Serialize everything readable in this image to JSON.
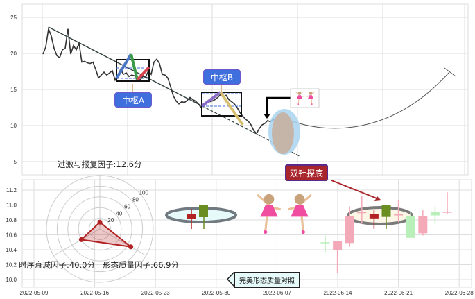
{
  "chart_data": [
    {
      "type": "line",
      "panel": "top",
      "y_ticks": [
        "25",
        "20",
        "15",
        "10",
        "5"
      ],
      "ylim": [
        4,
        26.5
      ],
      "grid": true,
      "price": [
        19.9,
        20.9,
        23.4,
        22.4,
        20.7,
        19.7,
        19.4,
        20.5,
        20.7,
        23.4,
        19.9,
        21.1,
        20.5,
        21.4,
        18.8,
        18.9,
        18.7,
        18.6,
        18.8,
        17.8,
        16.6,
        17.0,
        17.4,
        17.0,
        17.3,
        17.6,
        16.3,
        17.0,
        17.8,
        17.1,
        17.3,
        16.8,
        17.0,
        16.9,
        16.6,
        16.3,
        16.8,
        16.7,
        17.6,
        17.1,
        18.8,
        19.2,
        18.6,
        17.1,
        17.0,
        16.6,
        15.4,
        14.1,
        13.4,
        13.0,
        13.3,
        13.2,
        13.5,
        13.9,
        13.6,
        13.4,
        13.0,
        12.5,
        12.8,
        13.2,
        13.3,
        13.4,
        13.6,
        13.9,
        14.3,
        13.9,
        14.2,
        13.6,
        13.3,
        13.0,
        12.5,
        11.8,
        11.3,
        10.9,
        10.6,
        10.1,
        9.3,
        8.9,
        9.6,
        10.1,
        10.3,
        10.7,
        10.5,
        10.9,
        10.5,
        10.9,
        10.8,
        11.1
      ],
      "annotations": {
        "pivot_a": "中枢A",
        "pivot_b": "中枢B"
      }
    },
    {
      "type": "candlestick",
      "panel": "bottom",
      "y_ticks": [
        "11.2",
        "11.0",
        "10.8",
        "10.6",
        "10.4",
        "10.2",
        "10.0"
      ],
      "ylim": [
        9.95,
        11.35
      ],
      "x_ticks": [
        "2022-05-09",
        "2022-05-16",
        "2022-05-23",
        "2022-05-30",
        "2022-06-07",
        "2022-06-14",
        "2022-06-21",
        "2022-06-28"
      ],
      "grid": true,
      "candles": [
        {
          "o": 10.49,
          "h": 10.59,
          "l": 10.37,
          "c": 10.5,
          "color": "#b9efb9"
        },
        {
          "o": 10.4,
          "h": 10.52,
          "l": 10.09,
          "c": 10.52,
          "color": "#f4a9b8"
        },
        {
          "o": 10.49,
          "h": 10.98,
          "l": 10.44,
          "c": 10.85,
          "color": "#f4a9b8"
        },
        {
          "o": 10.89,
          "h": 11.12,
          "l": 10.75,
          "c": 10.91,
          "color": "#f4a9b8"
        },
        {
          "o": 10.88,
          "h": 10.94,
          "l": 10.68,
          "c": 10.82,
          "color": "#b22222"
        },
        {
          "o": 10.84,
          "h": 11.0,
          "l": 10.68,
          "c": 11.0,
          "color": "#6b8e23"
        },
        {
          "o": 10.86,
          "h": 11.07,
          "l": 10.77,
          "c": 10.88,
          "color": "#f4a9b8"
        },
        {
          "o": 10.85,
          "h": 10.9,
          "l": 10.56,
          "c": 10.56,
          "color": "#b9efb9"
        },
        {
          "o": 10.62,
          "h": 10.93,
          "l": 10.59,
          "c": 10.85,
          "color": "#f4a9b8"
        },
        {
          "o": 10.91,
          "h": 10.98,
          "l": 10.75,
          "c": 10.86,
          "color": "#b9efb9"
        },
        {
          "o": 10.9,
          "h": 11.17,
          "l": 10.88,
          "c": 10.91,
          "color": "#f4a9b8"
        }
      ],
      "pattern_label": "双针探底"
    },
    {
      "type": "radar",
      "ring_labels": [
        "20",
        "40",
        "60",
        "80",
        "100"
      ],
      "factors": [
        {
          "label": "过激与报复因子:12.6分",
          "value": 12.6
        },
        {
          "label": "时序衰减因子:40.0分",
          "value": 40.0
        },
        {
          "label": "形态质量因子:66.9分",
          "value": 66.9
        }
      ],
      "color": "#b22222"
    }
  ],
  "compare_button": "完美形态质量对照"
}
